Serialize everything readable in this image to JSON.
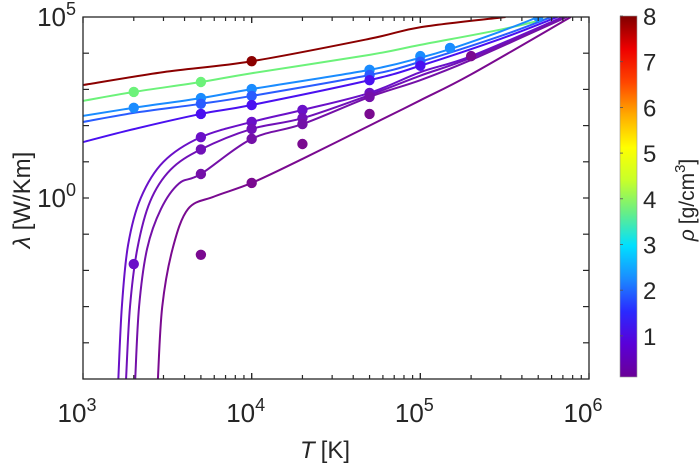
{
  "chart_data": {
    "type": "line",
    "title": "",
    "xlabel": "T [K]",
    "xlabel_italic": "T",
    "xlabel_unit": "[K]",
    "ylabel": "λ [W/Km]",
    "ylabel_symbol": "λ",
    "ylabel_unit": "[W/Km]",
    "xscale": "log",
    "yscale": "log",
    "xlim": [
      1000,
      1000000
    ],
    "ylim": [
      1e-05,
      100000
    ],
    "xticks": [
      {
        "base": "10",
        "exp": "3",
        "value": 1000
      },
      {
        "base": "10",
        "exp": "4",
        "value": 10000
      },
      {
        "base": "10",
        "exp": "5",
        "value": 100000
      },
      {
        "base": "10",
        "exp": "6",
        "value": 1000000
      }
    ],
    "yticks": [
      {
        "base": "10",
        "exp": "0",
        "value": 1
      },
      {
        "base": "10",
        "exp": "5",
        "value": 100000
      }
    ],
    "grid": false,
    "colorbar": {
      "label": "ρ [g/cm³]",
      "label_symbol": "ρ",
      "label_unit": "[g/cm",
      "label_exp": "3",
      "label_close": "]",
      "range": [
        0.1,
        8
      ],
      "ticks": [
        "1",
        "2",
        "3",
        "4",
        "5",
        "6",
        "7",
        "8"
      ],
      "colormap": [
        "#6a0096",
        "#5a00d8",
        "#2a2aff",
        "#1a8cff",
        "#00e0ff",
        "#66ee88",
        "#c8ff2a",
        "#ffff00",
        "#ffaa00",
        "#ff4400",
        "#ee0000",
        "#800000"
      ],
      "location": "right"
    },
    "series": [
      {
        "name": "rho-8.0",
        "density": 8.0,
        "color": "#8b0000",
        "curve": [
          [
            1000,
            1320
          ],
          [
            3000,
            3000
          ],
          [
            10000,
            6000
          ],
          [
            50000,
            25000
          ],
          [
            100000,
            52000
          ],
          [
            320000,
            100000
          ]
        ],
        "points": [
          [
            10000,
            6000
          ]
        ]
      },
      {
        "name": "rho-4.3",
        "density": 4.3,
        "color": "#6cf27a",
        "curve": [
          [
            1000,
            480
          ],
          [
            2000,
            850
          ],
          [
            5000,
            1600
          ],
          [
            10000,
            2800
          ],
          [
            50000,
            9000
          ],
          [
            100000,
            17000
          ],
          [
            300000,
            45000
          ],
          [
            620000,
            100000
          ]
        ],
        "points": [
          [
            2000,
            850
          ],
          [
            5000,
            1600
          ]
        ]
      },
      {
        "name": "rho-2.3",
        "density": 2.3,
        "color": "#1a8cff",
        "curve": [
          [
            1000,
            186
          ],
          [
            2000,
            310
          ],
          [
            5000,
            575
          ],
          [
            10000,
            1020
          ],
          [
            50000,
            3470
          ],
          [
            100000,
            7500
          ],
          [
            150000,
            13000
          ],
          [
            300000,
            40000
          ],
          [
            500000,
            100000
          ]
        ],
        "points": [
          [
            2000,
            310
          ],
          [
            5000,
            575
          ],
          [
            10000,
            1020
          ],
          [
            50000,
            3470
          ],
          [
            100000,
            8300
          ],
          [
            150000,
            14000
          ],
          [
            500000,
            100000
          ]
        ]
      },
      {
        "name": "rho-1.9",
        "density": 1.9,
        "color": "#2a5cff",
        "curve": [
          [
            1000,
            126
          ],
          [
            2000,
            224
          ],
          [
            5000,
            400
          ],
          [
            10000,
            660
          ],
          [
            50000,
            2500
          ],
          [
            100000,
            5800
          ],
          [
            300000,
            30000
          ],
          [
            600000,
            100000
          ]
        ],
        "points": [
          [
            5000,
            400
          ],
          [
            10000,
            660
          ],
          [
            50000,
            2500
          ],
          [
            100000,
            5800
          ]
        ]
      },
      {
        "name": "rho-1.3",
        "density": 1.3,
        "color": "#4a10f0",
        "curve": [
          [
            1000,
            35
          ],
          [
            2000,
            80
          ],
          [
            5000,
            210
          ],
          [
            10000,
            370
          ],
          [
            50000,
            1800
          ],
          [
            100000,
            4500
          ],
          [
            300000,
            25000
          ],
          [
            650000,
            100000
          ]
        ],
        "points": [
          [
            5000,
            210
          ],
          [
            10000,
            370
          ],
          [
            50000,
            1800
          ],
          [
            100000,
            4500
          ]
        ]
      },
      {
        "name": "rho-0.6",
        "density": 0.6,
        "color": "#6a10c8",
        "curve": [
          [
            1620,
            1e-05
          ],
          [
            1700,
            0.001
          ],
          [
            1850,
            0.05
          ],
          [
            2200,
            1.0
          ],
          [
            3000,
            10
          ],
          [
            5000,
            48
          ],
          [
            10000,
            126
          ],
          [
            20000,
            270
          ],
          [
            50000,
            800
          ],
          [
            100000,
            3000
          ],
          [
            200000,
            8300
          ],
          [
            700000,
            100000
          ]
        ],
        "points": [
          [
            2000,
            0.015
          ],
          [
            5000,
            48
          ],
          [
            10000,
            126
          ],
          [
            20000,
            270
          ],
          [
            50000,
            800
          ]
        ]
      },
      {
        "name": "rho-0.5",
        "density": 0.5,
        "color": "#7010b8",
        "curve": [
          [
            1800,
            1e-05
          ],
          [
            1900,
            0.001
          ],
          [
            2100,
            0.04
          ],
          [
            2500,
            0.8
          ],
          [
            3300,
            6
          ],
          [
            5000,
            22
          ],
          [
            10000,
            81
          ],
          [
            20000,
            160
          ],
          [
            50000,
            700
          ],
          [
            100000,
            2400
          ],
          [
            200000,
            7500
          ],
          [
            720000,
            100000
          ]
        ],
        "points": [
          [
            5000,
            22
          ],
          [
            10000,
            81
          ],
          [
            20000,
            160
          ],
          [
            50000,
            700
          ]
        ]
      },
      {
        "name": "rho-0.45",
        "density": 0.45,
        "color": "#7410a8",
        "curve": [
          [
            2040,
            1e-05
          ],
          [
            2150,
            0.001
          ],
          [
            2400,
            0.04
          ],
          [
            2900,
            0.5
          ],
          [
            3700,
            2.5
          ],
          [
            5000,
            4.6
          ],
          [
            10000,
            43
          ],
          [
            20000,
            110
          ],
          [
            50000,
            620
          ],
          [
            100000,
            1800
          ],
          [
            200000,
            6500
          ],
          [
            740000,
            100000
          ]
        ],
        "points": [
          [
            5000,
            4.6
          ],
          [
            10000,
            43
          ],
          [
            20000,
            110
          ],
          [
            50000,
            620
          ]
        ]
      },
      {
        "name": "rho-0.2",
        "density": 0.2,
        "color": "#7a0a90",
        "curve": [
          [
            2780,
            1e-05
          ],
          [
            2950,
            0.001
          ],
          [
            3400,
            0.04
          ],
          [
            4200,
            0.5
          ],
          [
            6000,
            1.1
          ],
          [
            10000,
            2.6
          ],
          [
            20000,
            12
          ],
          [
            50000,
            100
          ],
          [
            100000,
            500
          ],
          [
            200000,
            2600
          ],
          [
            780000,
            100000
          ]
        ],
        "points": [
          [
            5000,
            0.027
          ],
          [
            10000,
            2.6
          ],
          [
            20000,
            31
          ],
          [
            50000,
            210
          ],
          [
            200000,
            8300
          ]
        ]
      }
    ]
  }
}
